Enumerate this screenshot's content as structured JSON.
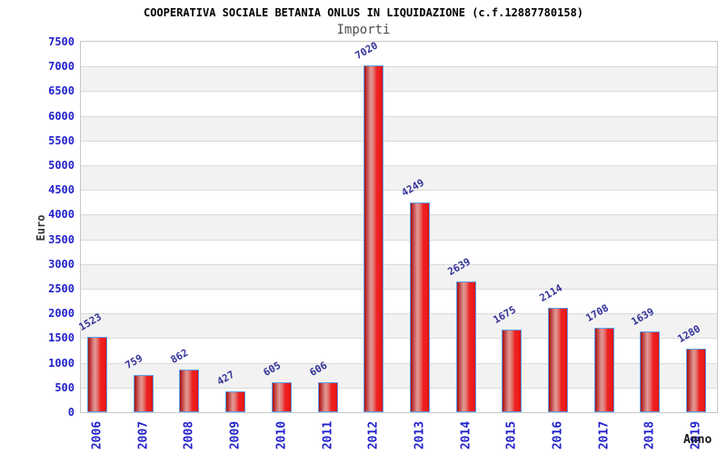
{
  "header": {
    "title": "COOPERATIVA SOCIALE BETANIA ONLUS IN LIQUIDAZIONE (c.f.12887780158)",
    "subtitle": "Importi"
  },
  "chart_data": {
    "type": "bar",
    "title": "COOPERATIVA SOCIALE BETANIA ONLUS IN LIQUIDAZIONE (c.f.12887780158)",
    "subtitle": "Importi",
    "categories": [
      "2006",
      "2007",
      "2008",
      "2009",
      "2010",
      "2011",
      "2012",
      "2013",
      "2014",
      "2015",
      "2016",
      "2017",
      "2018",
      "2019"
    ],
    "values": [
      1523,
      759,
      862,
      427,
      605,
      606,
      7020,
      4249,
      2639,
      1675,
      2114,
      1708,
      1639,
      1280
    ],
    "xlabel": "Anno",
    "ylabel": "Euro",
    "ylim": [
      0,
      7500
    ],
    "ytick_step": 500,
    "yticks": [
      0,
      500,
      1000,
      1500,
      2000,
      2500,
      3000,
      3500,
      4000,
      4500,
      5000,
      5500,
      6000,
      6500,
      7000,
      7500
    ],
    "grid": true,
    "banded_background": true,
    "legend": false,
    "value_labels_rotated_deg": -30,
    "xtick_labels_rotated_deg": -90
  },
  "colors": {
    "bar_fill_main": "#ee1a1a",
    "bar_fill_dark_edge": "#a31010",
    "bar_fill_highlight": "#e19b97",
    "bar_border": "#5f9ce8",
    "axis_label_blue": "#2222cc",
    "value_label_navy": "#333399",
    "band_gray": "#f2f2f2",
    "gridline": "#dadada",
    "plot_border": "#c8c8c8",
    "title_black": "#000000",
    "subtitle_gray": "#4d4d4d"
  }
}
